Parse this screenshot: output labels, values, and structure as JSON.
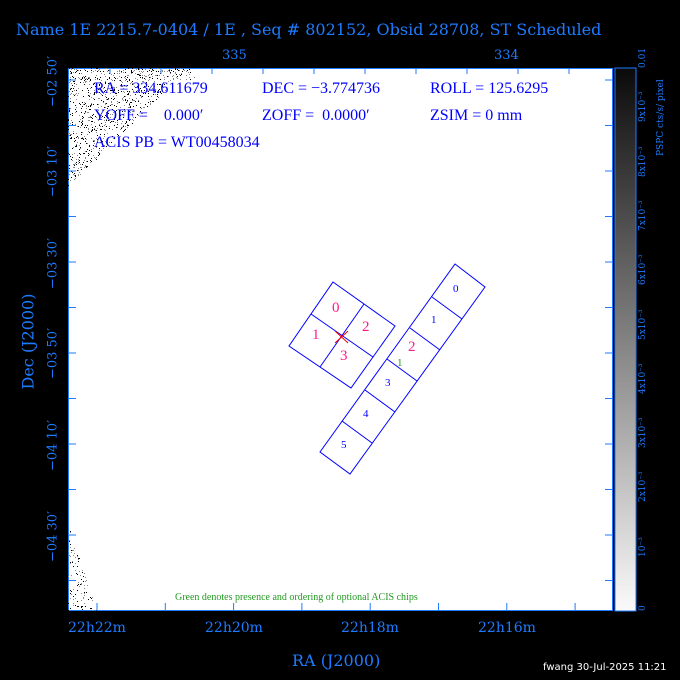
{
  "title": "Name 1E 2215.7-0404 / 1E , Seq # 802152, Obsid 28708, ST Scheduled",
  "info": {
    "ra": "RA = 334.611679",
    "dec": "DEC = −3.774736",
    "roll": "ROLL = 125.6295",
    "yoff": "YOFF =    0.000′",
    "zoff": "ZOFF =  0.0000′",
    "zsim": "ZSIM = 0 mm",
    "acis_pb": "ACIS PB = WT00458034"
  },
  "top_axis": [
    "335",
    "334"
  ],
  "left_axis": {
    "label": "Dec (J2000)",
    "ticks": [
      "−02 50′",
      "−03 10′",
      "−03 30′",
      "−03 50′",
      "−04 10′",
      "−04 30′"
    ]
  },
  "bottom_axis": {
    "label": "RA (J2000)",
    "ticks": [
      "22h22m",
      "22h20m",
      "22h18m",
      "22h16m"
    ]
  },
  "colorbar": {
    "label": "PSPC cts/s/ pixel",
    "ticks": [
      "0",
      "10⁻³",
      "2x10⁻³",
      "3x10⁻³",
      "4x10⁻³",
      "5x10⁻³",
      "6x10⁻³",
      "7x10⁻³",
      "8x10⁻³",
      "9x10⁻³",
      "0.01"
    ]
  },
  "chips": {
    "i_array": [
      "0",
      "1",
      "2",
      "3"
    ],
    "s_array": [
      "0",
      "1",
      "2",
      "3",
      "4",
      "5"
    ],
    "optional_marker": "1"
  },
  "note": "Green denotes presence and ordering of optional ACIS chips",
  "footer": "fwang 30-Jul-2025 11:21",
  "colors": {
    "axis": "#1e7bff",
    "chip_outline": "#0000ff",
    "i_chip_labels": "#ff1a8c",
    "optional": "#229922"
  }
}
